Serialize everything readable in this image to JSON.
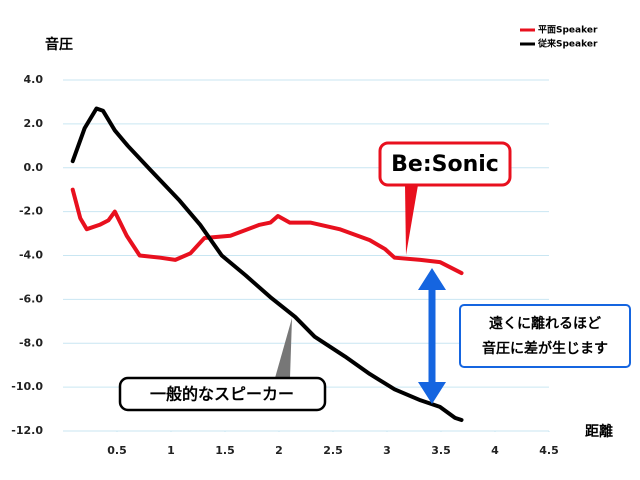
{
  "chart_data": {
    "type": "line",
    "y_label": "音圧",
    "x_label": "距離",
    "xlim": [
      0,
      4.5
    ],
    "ylim": [
      -12,
      4
    ],
    "xticks": [
      0.5,
      1,
      1.5,
      2,
      2.5,
      3,
      3.5,
      4,
      4.5
    ],
    "yticks": [
      {
        "value": 4,
        "label": "4.0"
      },
      {
        "value": 2,
        "label": "2.0"
      },
      {
        "value": 0,
        "label": "0.0"
      },
      {
        "value": -2,
        "label": "-2.0"
      },
      {
        "value": -4,
        "label": "-4.0"
      },
      {
        "value": -6,
        "label": "-6.0"
      },
      {
        "value": -8,
        "label": "-8.0"
      },
      {
        "value": -10,
        "label": "-10.0"
      },
      {
        "value": -12,
        "label": "-12.0"
      }
    ],
    "grid": true,
    "legend": "top-right",
    "series": [
      {
        "name": "平面Speaker",
        "color": "#e8101e",
        "x": [
          0.09,
          0.16,
          0.22,
          0.34,
          0.42,
          0.48,
          0.59,
          0.71,
          0.9,
          1.04,
          1.18,
          1.31,
          1.55,
          1.82,
          1.92,
          1.99,
          2.1,
          2.29,
          2.56,
          2.84,
          2.98,
          3.07,
          3.31,
          3.49,
          3.69
        ],
        "values": [
          -1.0,
          -2.3,
          -2.8,
          -2.6,
          -2.4,
          -2.0,
          -3.1,
          -4.0,
          -4.1,
          -4.2,
          -3.9,
          -3.2,
          -3.1,
          -2.6,
          -2.5,
          -2.2,
          -2.5,
          -2.5,
          -2.8,
          -3.3,
          -3.7,
          -4.1,
          -4.2,
          -4.3,
          -4.8
        ]
      },
      {
        "name": "従来Speaker",
        "color": "#000000",
        "x": [
          0.09,
          0.2,
          0.31,
          0.37,
          0.48,
          0.6,
          0.81,
          1.08,
          1.27,
          1.47,
          1.69,
          1.92,
          2.15,
          2.33,
          2.61,
          2.84,
          3.07,
          3.31,
          3.49,
          3.63,
          3.69
        ],
        "values": [
          0.3,
          1.8,
          2.7,
          2.6,
          1.7,
          1.0,
          -0.1,
          -1.5,
          -2.6,
          -4.0,
          -4.9,
          -5.9,
          -6.8,
          -7.7,
          -8.6,
          -9.4,
          -10.1,
          -10.6,
          -10.9,
          -11.4,
          -11.5
        ]
      }
    ],
    "annotations": [
      "Be:Sonic",
      "一般的なスピーカー",
      "遠くに離れるほど",
      "音圧に差が生じます"
    ]
  }
}
